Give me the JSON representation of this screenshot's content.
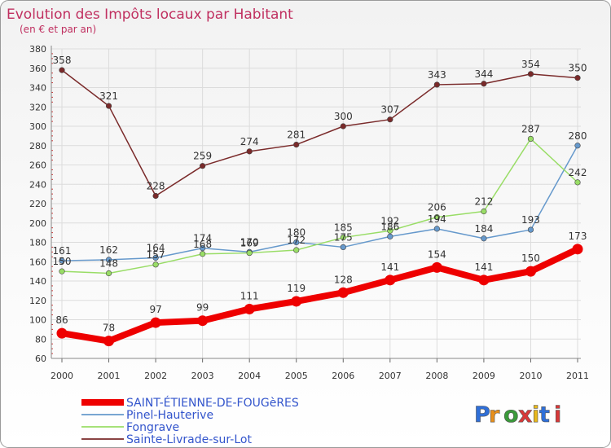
{
  "chart_data": {
    "type": "line",
    "title": "Evolution des Impôts locaux par Habitant",
    "subtitle": "(en € et par an)",
    "xlabel": "",
    "ylabel": "",
    "x": [
      2000,
      2001,
      2002,
      2003,
      2004,
      2005,
      2006,
      2007,
      2008,
      2009,
      2010,
      2011
    ],
    "y_ticks": [
      60,
      80,
      100,
      120,
      140,
      160,
      180,
      200,
      220,
      240,
      260,
      280,
      300,
      320,
      340,
      360,
      380
    ],
    "ylim": [
      60,
      380
    ],
    "grid": true,
    "legend_position": "bottom-left",
    "series": [
      {
        "name": "SAINT-ÉTIENNE-DE-FOUGèRES",
        "color": "#ee0000",
        "values": [
          86,
          78,
          97,
          99,
          111,
          119,
          128,
          141,
          154,
          141,
          150,
          173
        ]
      },
      {
        "name": "Pinel-Hauterive",
        "color": "#6699cc",
        "values": [
          161,
          162,
          164,
          174,
          170,
          180,
          175,
          186,
          194,
          184,
          193,
          280
        ]
      },
      {
        "name": "Fongrave",
        "color": "#99dd66",
        "values": [
          150,
          148,
          157,
          168,
          169,
          172,
          185,
          192,
          206,
          212,
          287,
          242
        ]
      },
      {
        "name": "Sainte-Livrade-sur-Lot",
        "color": "#7a2a2a",
        "values": [
          358,
          321,
          228,
          259,
          274,
          281,
          300,
          307,
          343,
          344,
          354,
          350
        ]
      }
    ]
  },
  "brand": {
    "logo_text": "Proxiti"
  }
}
